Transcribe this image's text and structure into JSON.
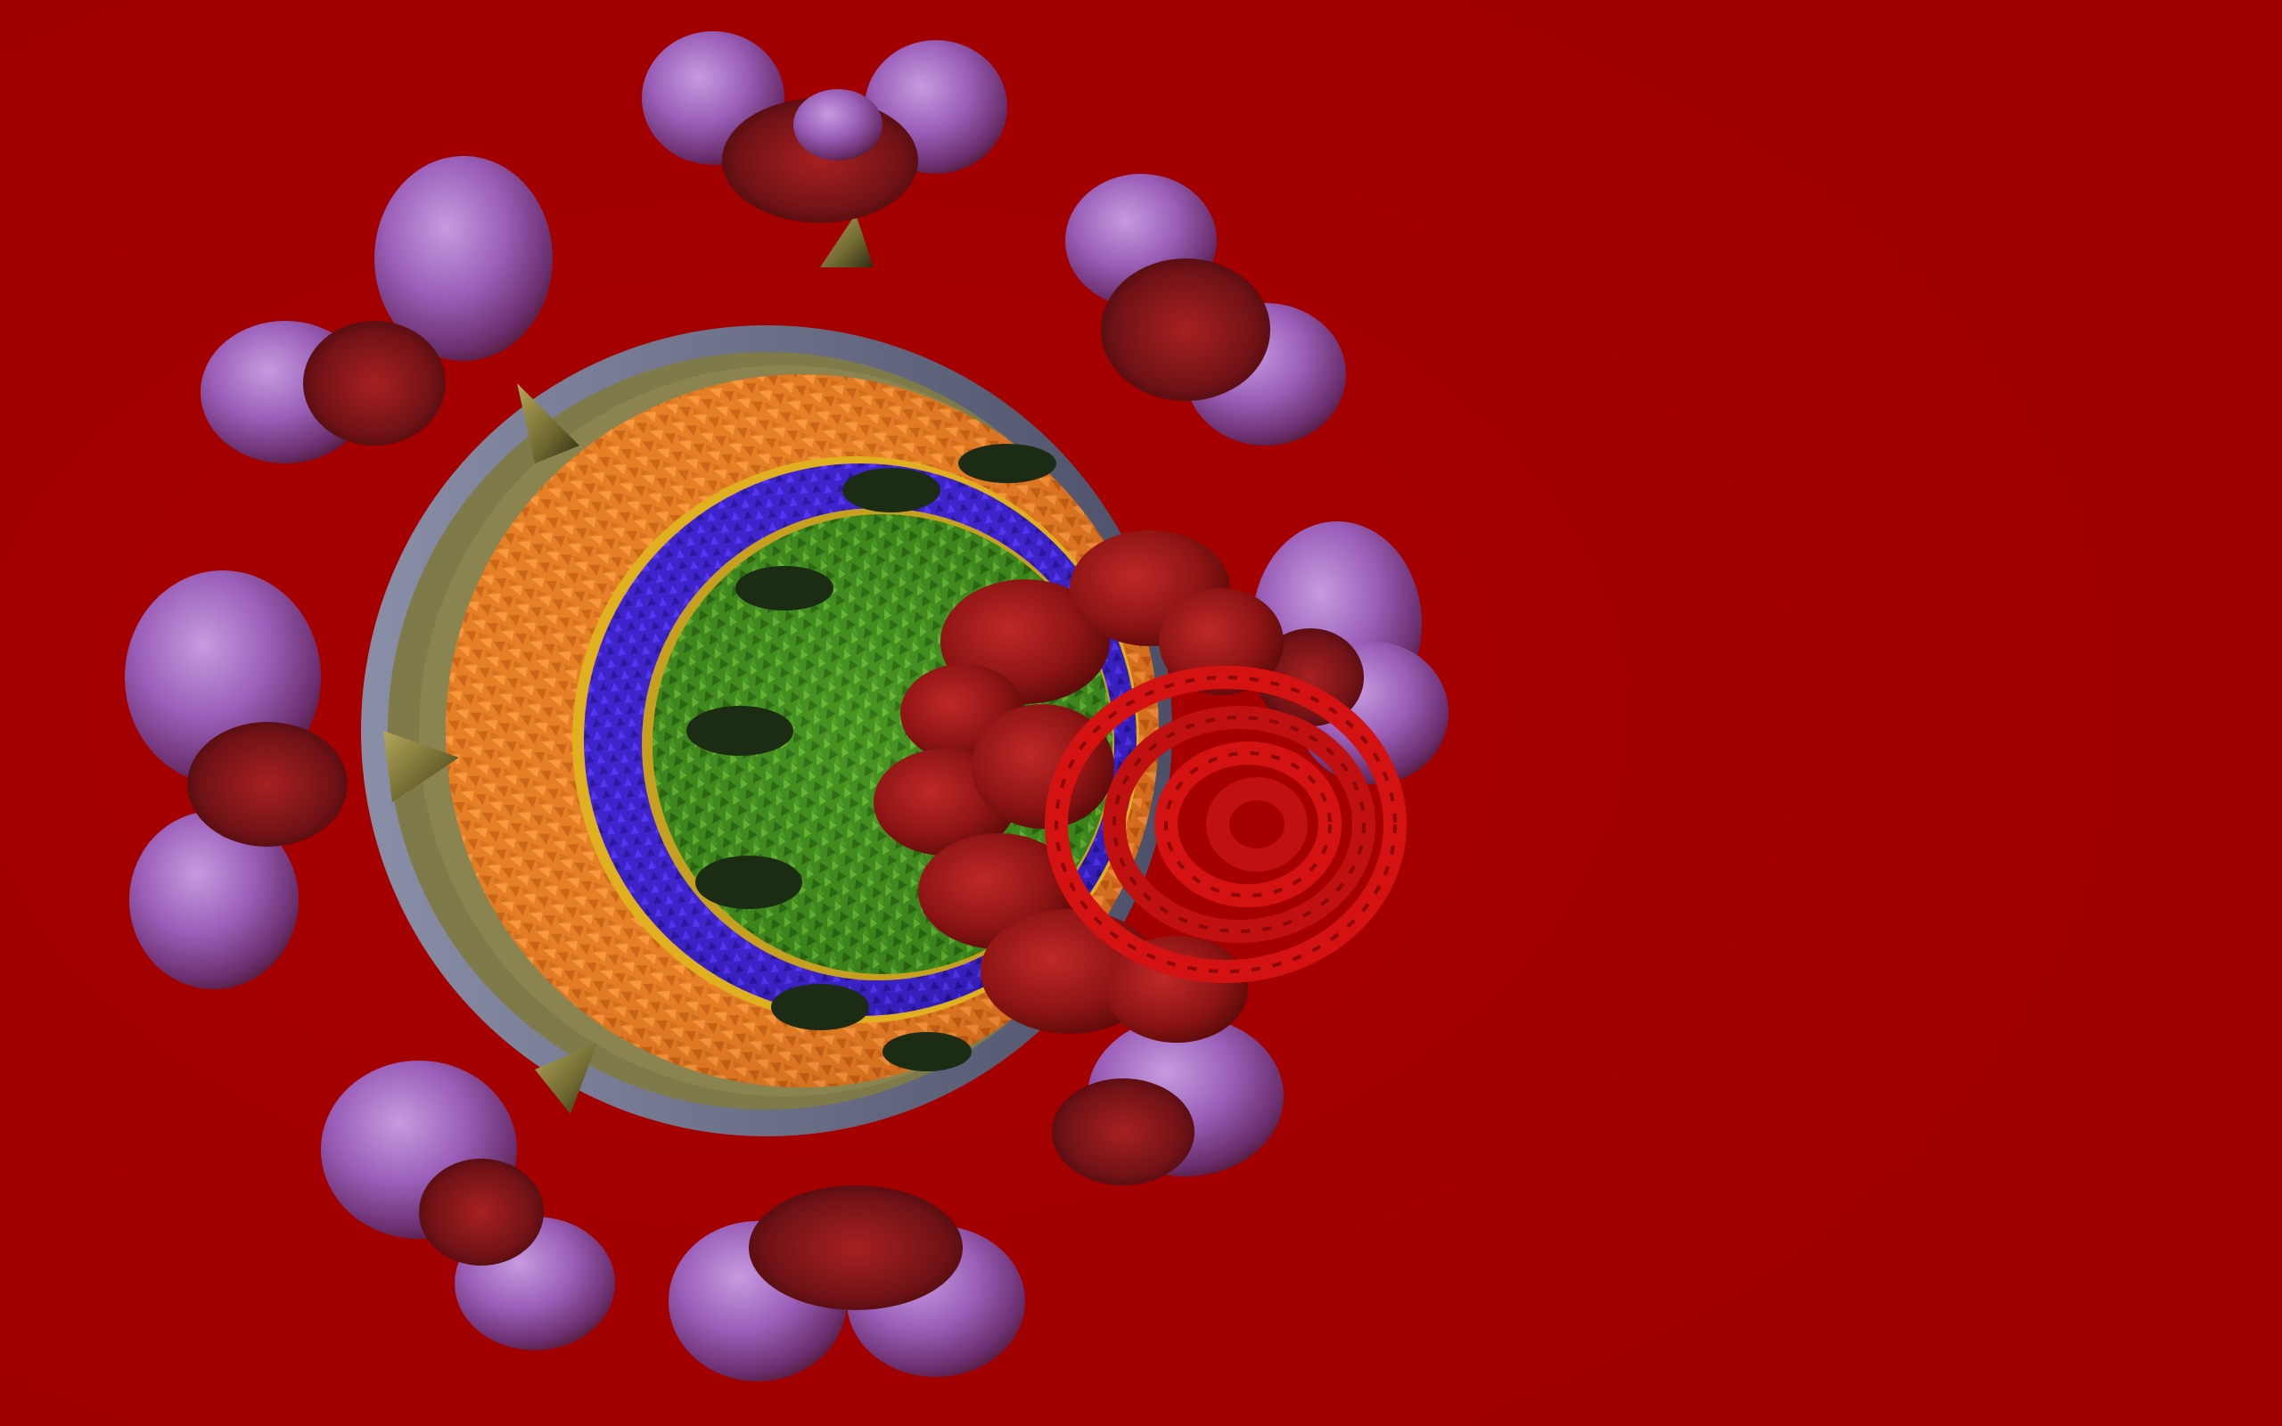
{
  "scene": {
    "subject": "virus-cross-section-render",
    "colors": {
      "background": "#a30000",
      "envelope_ring": "#6b7088",
      "envelope_ring_inner": "#7f7a4a",
      "matrix_layer": "#e07a24",
      "lipid_layer": "#3a1fc0",
      "capsid_layer": "#3f8a1e",
      "dark_rods": "#1c2b14",
      "core_protein": "#8e1414",
      "rna_coil": "#d41212",
      "spike_head": "#9a5fb8",
      "spike_shadow": "#5e1216",
      "spike_stalk": "#7a7432"
    },
    "counts": {
      "spikes_visible": 9
    }
  }
}
